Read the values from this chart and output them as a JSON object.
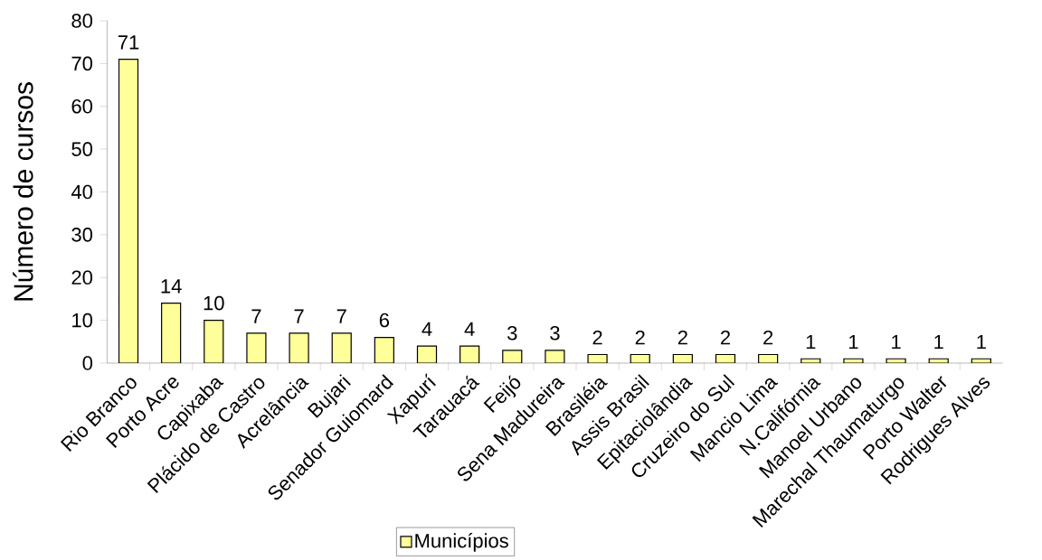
{
  "chart_data": {
    "type": "bar",
    "categories": [
      "Rio Branco",
      "Porto Acre",
      "Capixaba",
      "Plácido de Castro",
      "Acrelância",
      "Bujari",
      "Senador Guiomard",
      "Xapurí",
      "Tarauacá",
      "Feijó",
      "Sena Madureira",
      "Brasiléia",
      "Assis Brasil",
      "Epitaciolândia",
      "Cruzeiro do Sul",
      "Mancio Lima",
      "N.Califórnia",
      "Manoel Urbano",
      "Marechal Thaumaturgo",
      "Porto Walter",
      "Rodrigues Alves"
    ],
    "series": [
      {
        "name": "Municípios",
        "color": "#ffff99",
        "values": [
          71,
          14,
          10,
          7,
          7,
          7,
          6,
          4,
          4,
          3,
          3,
          2,
          2,
          2,
          2,
          2,
          1,
          1,
          1,
          1,
          1
        ]
      }
    ],
    "ylabel": "Número de cursos",
    "ylim": [
      0,
      80
    ],
    "yticks": [
      0,
      10,
      20,
      30,
      40,
      50,
      60,
      70,
      80
    ],
    "data_labels": true,
    "legend": "bottom",
    "grid": false
  }
}
